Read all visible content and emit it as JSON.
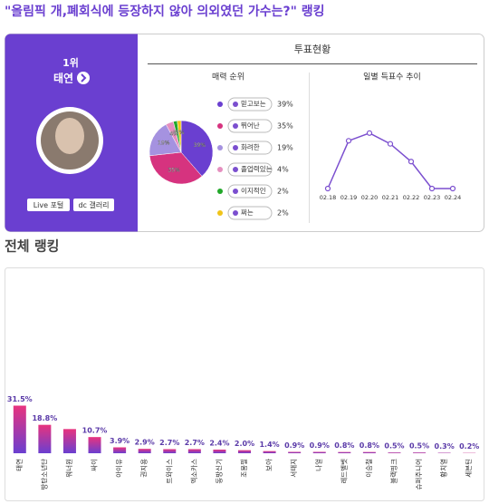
{
  "header": {
    "title": "\"올림픽 개,폐회식에 등장하지 않아 의외였던 가수는?\" 랭킹"
  },
  "profile": {
    "rank": "1위",
    "name": "태연",
    "buttons": [
      "Live 포털",
      "dc 갤러리"
    ]
  },
  "vote_status": {
    "title": "투표현황"
  },
  "chart_data": [
    {
      "type": "pie",
      "title": "매력 순위",
      "categories": [
        "믿고보는",
        "뛰어난",
        "화려한",
        "졸업력있는",
        "이지적인",
        "쩌는"
      ],
      "values": [
        39,
        35,
        19,
        4,
        2,
        2
      ],
      "value_labels": [
        "39%",
        "35%",
        "19%",
        "4%",
        "2%",
        "2%"
      ],
      "colors": [
        "#6a3fd0",
        "#d6337f",
        "#a592e0",
        "#e58fbf",
        "#22a82a",
        "#f0c419"
      ]
    },
    {
      "type": "line",
      "title": "일별 득표수 추이",
      "categories": [
        "02.18",
        "02.19",
        "02.20",
        "02.21",
        "02.22",
        "02.23",
        "02.24"
      ],
      "values": [
        0,
        62,
        72,
        58,
        35,
        0,
        0
      ],
      "color": "#7b4fcf",
      "ylim": [
        0,
        80
      ]
    },
    {
      "type": "bar",
      "title": "전체 랭킹",
      "categories": [
        "태연",
        "방탄소년단",
        "워너원",
        "싸이",
        "아이유",
        "권지용",
        "트와이스",
        "엑소카스",
        "동방신기",
        "조용필",
        "보아",
        "서태지",
        "나얼",
        "레드벨벳",
        "이승철",
        "블랙핑크",
        "슈퍼주니어",
        "황치열",
        "세븐틴"
      ],
      "values": [
        31.5,
        18.8,
        16,
        10.7,
        3.9,
        2.9,
        2.7,
        2.7,
        2.4,
        2.0,
        1.4,
        0.9,
        0.9,
        0.8,
        0.8,
        0.5,
        0.5,
        0.3,
        0.2
      ],
      "value_labels": [
        "31.5%",
        "18.8%",
        null,
        "10.7%",
        "3.9%",
        "2.9%",
        "2.7%",
        "2.7%",
        "2.4%",
        "2.0%",
        "1.4%",
        "0.9%",
        "0.9%",
        "0.8%",
        "0.8%",
        "0.5%",
        "0.5%",
        "0.3%",
        "0.2%"
      ],
      "colors": [
        "#e8337e",
        "#6a3fd0"
      ],
      "ylim": [
        0,
        120
      ]
    }
  ]
}
